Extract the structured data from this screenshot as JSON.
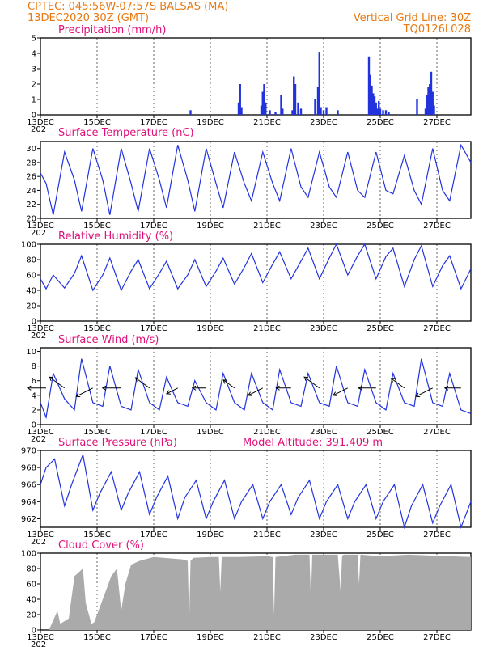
{
  "header": {
    "station": "CPTEC:   045:56W-07:57S   BALSAS (MA)",
    "run_time": "13DEC2020 30Z (GMT)",
    "grid_note": "Vertical Grid Line: 30Z",
    "code": "TQ0126L028"
  },
  "x_axis": {
    "tick_labels": [
      "13DEC",
      "15DEC",
      "17DEC",
      "19DEC",
      "21DEC",
      "23DEC",
      "25DEC",
      "27DEC"
    ],
    "year_fragment": "202",
    "days_range": [
      0,
      15.2
    ]
  },
  "chart_data": [
    {
      "id": "precip",
      "type": "bar",
      "title": "Precipitation (mm/h)",
      "ylim": [
        0,
        5
      ],
      "yticks": [
        0,
        1,
        2,
        3,
        4,
        5
      ],
      "color": "#2233dd",
      "x": [
        5.3,
        7.0,
        7.05,
        7.1,
        7.8,
        7.85,
        7.9,
        7.95,
        8.1,
        8.3,
        8.5,
        8.55,
        8.9,
        8.95,
        9.0,
        9.1,
        9.2,
        9.7,
        9.8,
        9.85,
        9.9,
        10.0,
        10.1,
        10.5,
        11.6,
        11.65,
        11.7,
        11.75,
        11.8,
        11.85,
        11.9,
        11.95,
        12.0,
        12.1,
        12.2,
        12.3,
        13.3,
        13.6,
        13.65,
        13.7,
        13.75,
        13.8,
        13.85,
        13.9
      ],
      "values": [
        0.3,
        0.8,
        2.0,
        0.5,
        0.6,
        1.5,
        2.0,
        0.8,
        0.3,
        0.2,
        1.3,
        0.4,
        0.3,
        2.5,
        2.0,
        0.8,
        0.4,
        1.0,
        1.8,
        4.1,
        0.5,
        0.3,
        0.5,
        0.3,
        3.8,
        2.6,
        1.9,
        1.4,
        1.2,
        0.8,
        0.4,
        0.9,
        0.4,
        0.3,
        0.3,
        0.2,
        1.0,
        0.4,
        1.3,
        1.8,
        2.0,
        2.8,
        1.5,
        0.6
      ]
    },
    {
      "id": "temp",
      "type": "line",
      "title": "Surface Temperature (nC)",
      "ylim": [
        20,
        31
      ],
      "yticks": [
        20,
        22,
        24,
        26,
        28,
        30
      ],
      "color": "#2233dd",
      "x": [
        0.0,
        0.2,
        0.45,
        0.85,
        1.2,
        1.45,
        1.85,
        2.2,
        2.45,
        2.85,
        3.2,
        3.45,
        3.85,
        4.2,
        4.45,
        4.85,
        5.2,
        5.45,
        5.85,
        6.2,
        6.45,
        6.85,
        7.2,
        7.45,
        7.85,
        8.2,
        8.45,
        8.85,
        9.2,
        9.45,
        9.85,
        10.2,
        10.45,
        10.85,
        11.2,
        11.45,
        11.85,
        12.2,
        12.45,
        12.85,
        13.2,
        13.45,
        13.85,
        14.2,
        14.45,
        14.85,
        15.2
      ],
      "values": [
        26.5,
        25.0,
        20.5,
        29.5,
        25.5,
        21.0,
        30.0,
        25.5,
        20.5,
        30.0,
        25.0,
        21.0,
        30.0,
        25.5,
        21.5,
        30.5,
        25.5,
        21.0,
        30.0,
        25.0,
        21.5,
        29.5,
        25.0,
        22.5,
        29.5,
        25.0,
        22.5,
        30.0,
        24.5,
        23.0,
        29.5,
        24.5,
        23.0,
        29.5,
        24.0,
        23.0,
        29.5,
        24.0,
        23.5,
        29.0,
        24.0,
        22.0,
        30.0,
        24.0,
        22.5,
        30.5,
        28.0
      ]
    },
    {
      "id": "rh",
      "type": "line",
      "title": "Relative Humidity (%)",
      "ylim": [
        0,
        100
      ],
      "yticks": [
        0,
        20,
        40,
        60,
        80,
        100
      ],
      "color": "#2233dd",
      "x": [
        0.0,
        0.2,
        0.45,
        0.85,
        1.2,
        1.45,
        1.85,
        2.2,
        2.45,
        2.85,
        3.2,
        3.45,
        3.85,
        4.2,
        4.45,
        4.85,
        5.2,
        5.45,
        5.85,
        6.2,
        6.45,
        6.85,
        7.2,
        7.45,
        7.85,
        8.2,
        8.45,
        8.85,
        9.2,
        9.45,
        9.85,
        10.2,
        10.45,
        10.85,
        11.2,
        11.45,
        11.85,
        12.2,
        12.45,
        12.85,
        13.2,
        13.45,
        13.85,
        14.2,
        14.45,
        14.85,
        15.2
      ],
      "values": [
        55.0,
        42.0,
        60.0,
        43.0,
        62.0,
        85.0,
        40.0,
        60.0,
        82.0,
        40.0,
        65.0,
        80.0,
        42.0,
        62.0,
        78.0,
        42.0,
        60.0,
        80.0,
        45.0,
        65.0,
        82.0,
        48.0,
        70.0,
        88.0,
        50.0,
        74.0,
        90.0,
        55.0,
        78.0,
        95.0,
        55.0,
        82.0,
        100.0,
        60.0,
        85.0,
        100.0,
        55.0,
        84.0,
        95.0,
        45.0,
        80.0,
        98.0,
        45.0,
        72.0,
        85.0,
        42.0,
        68.0
      ]
    },
    {
      "id": "wind",
      "type": "line",
      "title": "Surface Wind (m/s)",
      "ylim": [
        0,
        10.5
      ],
      "yticks": [
        0,
        2,
        4,
        6,
        8,
        10
      ],
      "color": "#2233dd",
      "x": [
        0.0,
        0.2,
        0.45,
        0.85,
        1.2,
        1.45,
        1.85,
        2.2,
        2.45,
        2.85,
        3.2,
        3.45,
        3.85,
        4.2,
        4.45,
        4.85,
        5.2,
        5.45,
        5.85,
        6.2,
        6.45,
        6.85,
        7.2,
        7.45,
        7.85,
        8.2,
        8.45,
        8.85,
        9.2,
        9.45,
        9.85,
        10.2,
        10.45,
        10.85,
        11.2,
        11.45,
        11.85,
        12.2,
        12.45,
        12.85,
        13.2,
        13.45,
        13.85,
        14.2,
        14.45,
        14.85,
        15.2
      ],
      "values": [
        3.0,
        1.0,
        7.0,
        3.5,
        2.0,
        9.0,
        3.0,
        2.5,
        8.0,
        2.5,
        2.0,
        7.5,
        3.0,
        2.0,
        6.5,
        3.0,
        2.5,
        6.0,
        3.0,
        2.0,
        7.0,
        3.0,
        2.0,
        7.0,
        3.0,
        2.0,
        7.5,
        3.0,
        2.5,
        7.0,
        3.0,
        2.5,
        8.0,
        3.0,
        2.5,
        7.5,
        3.0,
        2.0,
        7.0,
        3.0,
        2.5,
        9.0,
        3.0,
        2.5,
        7.0,
        2.0,
        1.5
      ],
      "arrows": {
        "x": [
          0.2,
          0.85,
          1.85,
          2.85,
          3.85,
          4.85,
          5.85,
          6.85,
          7.85,
          8.85,
          9.85,
          10.85,
          11.85,
          12.85,
          13.85,
          14.85
        ],
        "speed": [
          5.0,
          5.0,
          5.0,
          5.0,
          4.5,
          2.5,
          3.0,
          3.0,
          4.0,
          3.5,
          5.0,
          4.0,
          4.5,
          4.0,
          5.0,
          4.0
        ]
      }
    },
    {
      "id": "pressure",
      "type": "line",
      "title": "Surface Pressure (hPa)",
      "subtitle": "Model Altitude: 391.409  m",
      "ylim": [
        961,
        970
      ],
      "yticks": [
        962,
        964,
        966,
        968,
        970
      ],
      "color": "#2233dd",
      "x": [
        0.0,
        0.2,
        0.5,
        0.85,
        1.1,
        1.5,
        1.85,
        2.1,
        2.5,
        2.85,
        3.1,
        3.5,
        3.85,
        4.1,
        4.5,
        4.85,
        5.1,
        5.5,
        5.85,
        6.1,
        6.5,
        6.85,
        7.1,
        7.5,
        7.85,
        8.1,
        8.5,
        8.85,
        9.1,
        9.5,
        9.85,
        10.1,
        10.5,
        10.85,
        11.1,
        11.5,
        11.85,
        12.1,
        12.5,
        12.85,
        13.1,
        13.5,
        13.85,
        14.1,
        14.5,
        14.85,
        15.2
      ],
      "values": [
        966.0,
        968.0,
        969.0,
        963.5,
        966.0,
        969.5,
        963.0,
        965.0,
        967.5,
        963.0,
        965.0,
        967.5,
        962.5,
        964.5,
        967.0,
        962.0,
        964.5,
        966.5,
        962.0,
        964.0,
        966.5,
        962.0,
        964.0,
        966.0,
        962.0,
        964.0,
        966.0,
        962.5,
        964.5,
        966.5,
        962.0,
        964.0,
        966.0,
        962.0,
        964.0,
        966.0,
        962.0,
        964.0,
        966.0,
        961.0,
        963.5,
        966.0,
        961.5,
        963.5,
        966.0,
        961.0,
        964.0
      ]
    },
    {
      "id": "cloud",
      "type": "area",
      "title": "Cloud Cover (%)",
      "ylim": [
        0,
        100
      ],
      "yticks": [
        0,
        20,
        40,
        60,
        80,
        100
      ],
      "color": "#aaaaaa",
      "x": [
        0.0,
        0.3,
        0.6,
        0.7,
        1.0,
        1.2,
        1.5,
        1.6,
        1.8,
        1.9,
        2.1,
        2.3,
        2.5,
        2.7,
        2.85,
        3.0,
        3.2,
        3.5,
        4.0,
        5.0,
        5.2,
        5.25,
        5.3,
        5.4,
        6.0,
        6.3,
        6.35,
        6.4,
        7.0,
        8.0,
        8.2,
        8.25,
        8.3,
        9.0,
        9.5,
        9.55,
        9.6,
        10.5,
        10.6,
        10.65,
        10.7,
        11.0,
        11.2,
        11.25,
        11.3,
        12.0,
        13.0,
        15.2
      ],
      "values": [
        0.0,
        0.0,
        25.0,
        8.0,
        15.0,
        70.0,
        80.0,
        35.0,
        8.0,
        10.0,
        30.0,
        50.0,
        70.0,
        80.0,
        25.0,
        60.0,
        85.0,
        90.0,
        95.0,
        92.0,
        90.0,
        10.0,
        90.0,
        94.0,
        95.0,
        95.0,
        50.0,
        95.0,
        95.0,
        96.0,
        95.0,
        20.0,
        95.0,
        98.0,
        98.0,
        40.0,
        98.0,
        98.0,
        50.0,
        96.0,
        98.0,
        98.0,
        98.0,
        60.0,
        98.0,
        96.0,
        98.0,
        95.0
      ]
    }
  ]
}
